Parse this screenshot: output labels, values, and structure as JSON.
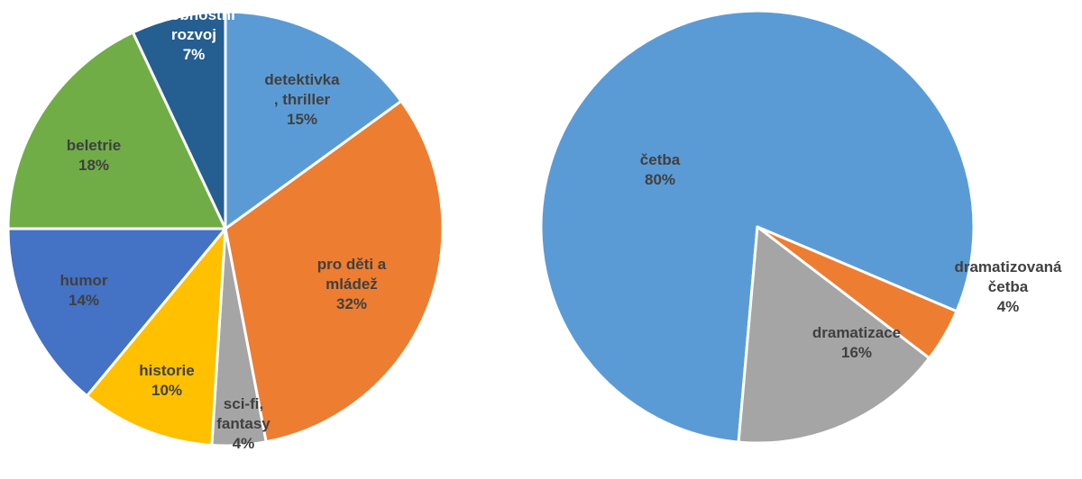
{
  "chart_data": [
    {
      "type": "pie",
      "title": "",
      "slices": [
        {
          "lines": [
            "detektivka",
            ", thriller"
          ],
          "pct_label": "15%",
          "value": 15,
          "color": "#5B9BD5"
        },
        {
          "lines": [
            "pro děti a",
            "mládež"
          ],
          "pct_label": "32%",
          "value": 32,
          "color": "#ED7D31"
        },
        {
          "lines": [
            "sci-fi,",
            "fantasy"
          ],
          "pct_label": "4%",
          "value": 4,
          "color": "#A5A5A5"
        },
        {
          "lines": [
            "historie"
          ],
          "pct_label": "10%",
          "value": 10,
          "color": "#FFC000"
        },
        {
          "lines": [
            "humor"
          ],
          "pct_label": "14%",
          "value": 14,
          "color": "#4472C4"
        },
        {
          "lines": [
            "beletrie"
          ],
          "pct_label": "18%",
          "value": 18,
          "color": "#70AD47"
        },
        {
          "lines": [
            "osobnostní",
            "rozvoj"
          ],
          "pct_label": "7%",
          "value": 7,
          "color": "#255E91"
        }
      ]
    },
    {
      "type": "pie",
      "title": "",
      "slices": [
        {
          "lines": [
            "četba"
          ],
          "pct_label": "80%",
          "value": 80,
          "color": "#5B9BD5"
        },
        {
          "lines": [
            "dramatizovaná",
            "četba"
          ],
          "pct_label": "4%",
          "value": 4,
          "color": "#ED7D31"
        },
        {
          "lines": [
            "dramatizace"
          ],
          "pct_label": "16%",
          "value": 16,
          "color": "#A5A5A5"
        }
      ]
    }
  ],
  "colors": {
    "label_text": "#404040",
    "label_text_light": "#ffffff",
    "slice_border": "#ffffff"
  }
}
